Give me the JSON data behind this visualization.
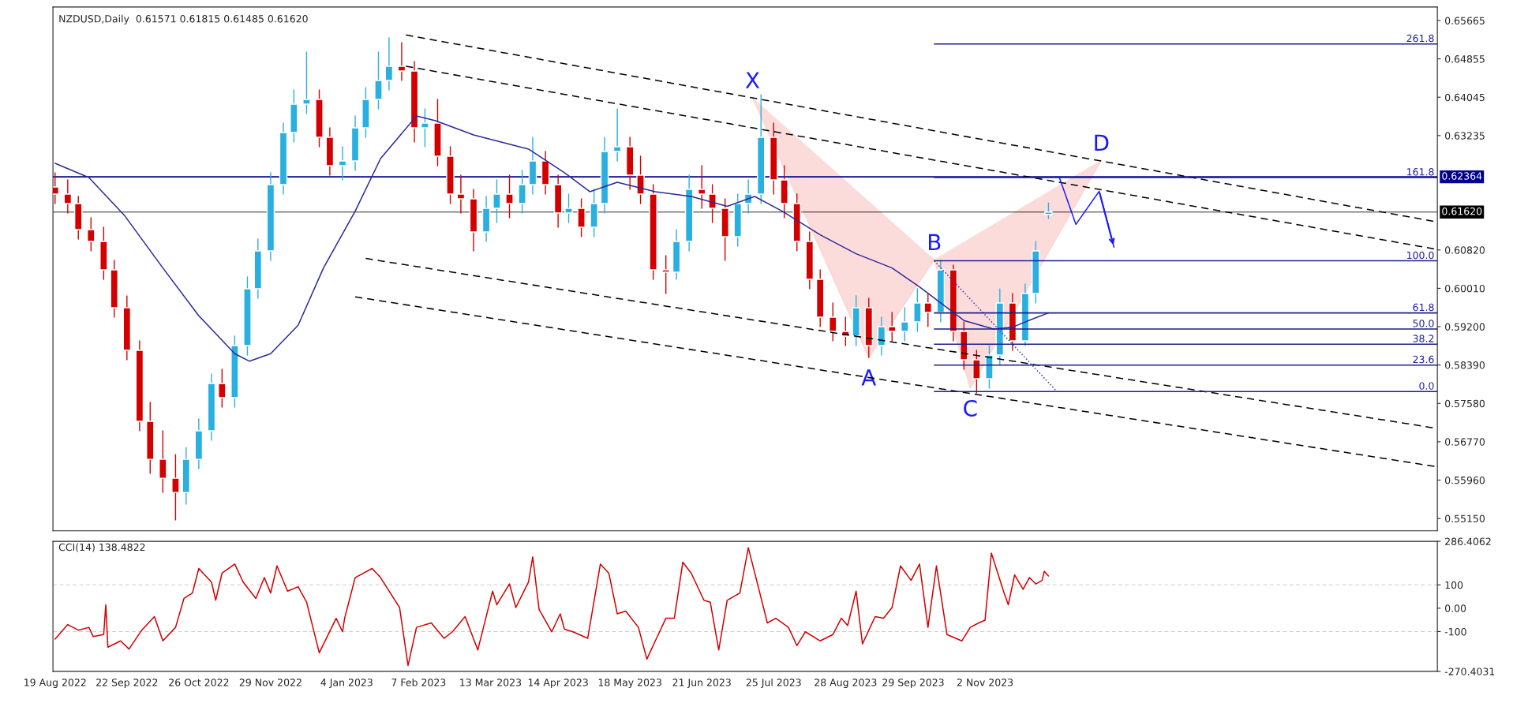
{
  "chart_data": [
    {
      "type": "candlestick",
      "title": "NZDUSD,Daily  0.61571 0.61815 0.61485 0.61620",
      "tick_labels": "y",
      "legend": false,
      "grid": false,
      "x": [
        "2022-08-19",
        "2022-08-25",
        "2022-08-30",
        "2022-09-05",
        "2022-09-11",
        "2022-09-16",
        "2022-09-22",
        "2022-09-28",
        "2022-10-03",
        "2022-10-09",
        "2022-10-15",
        "2022-10-20",
        "2022-10-26",
        "2022-11-01",
        "2022-11-06",
        "2022-11-12",
        "2022-11-18",
        "2022-11-23",
        "2022-11-29",
        "2022-12-05",
        "2022-12-10",
        "2022-12-16",
        "2022-12-22",
        "2022-12-27",
        "2023-01-02",
        "2023-01-08",
        "2023-01-13",
        "2023-01-19",
        "2023-01-24",
        "2023-01-30",
        "2023-02-05",
        "2023-02-10",
        "2023-02-16",
        "2023-02-22",
        "2023-02-27",
        "2023-03-05",
        "2023-03-11",
        "2023-03-16",
        "2023-03-22",
        "2023-03-28",
        "2023-04-02",
        "2023-04-08",
        "2023-04-14",
        "2023-04-19",
        "2023-04-25",
        "2023-05-01",
        "2023-05-06",
        "2023-05-12",
        "2023-05-18",
        "2023-05-23",
        "2023-05-29",
        "2023-06-04",
        "2023-06-09",
        "2023-06-15",
        "2023-06-21",
        "2023-06-26",
        "2023-07-02",
        "2023-07-08",
        "2023-07-13",
        "2023-07-19",
        "2023-07-25",
        "2023-07-30",
        "2023-08-05",
        "2023-08-11",
        "2023-08-16",
        "2023-08-22",
        "2023-08-28",
        "2023-09-02",
        "2023-09-08",
        "2023-09-14",
        "2023-09-19",
        "2023-09-25",
        "2023-10-01",
        "2023-10-06",
        "2023-10-12",
        "2023-10-18",
        "2023-10-23",
        "2023-10-29",
        "2023-11-04",
        "2023-11-09",
        "2023-11-15",
        "2023-11-21",
        "2023-11-26",
        "2023-12-02"
      ],
      "ohlc": [
        [
          0.6215,
          0.6245,
          0.618,
          0.62
        ],
        [
          0.62,
          0.623,
          0.616,
          0.618
        ],
        [
          0.618,
          0.6195,
          0.6105,
          0.6125
        ],
        [
          0.6125,
          0.615,
          0.608,
          0.61
        ],
        [
          0.61,
          0.613,
          0.602,
          0.604
        ],
        [
          0.604,
          0.606,
          0.594,
          0.596
        ],
        [
          0.596,
          0.5985,
          0.585,
          0.587
        ],
        [
          0.587,
          0.589,
          0.57,
          0.572
        ],
        [
          0.572,
          0.576,
          0.561,
          0.564
        ],
        [
          0.564,
          0.57,
          0.557,
          0.56
        ],
        [
          0.56,
          0.565,
          0.5512,
          0.557
        ],
        [
          0.557,
          0.5665,
          0.5545,
          0.564
        ],
        [
          0.564,
          0.5725,
          0.562,
          0.57
        ],
        [
          0.57,
          0.582,
          0.568,
          0.58
        ],
        [
          0.58,
          0.583,
          0.575,
          0.577
        ],
        [
          0.577,
          0.59,
          0.575,
          0.588
        ],
        [
          0.588,
          0.6025,
          0.586,
          0.6
        ],
        [
          0.6,
          0.6105,
          0.598,
          0.608
        ],
        [
          0.608,
          0.6245,
          0.606,
          0.622
        ],
        [
          0.622,
          0.635,
          0.62,
          0.633
        ],
        [
          0.633,
          0.642,
          0.631,
          0.639
        ],
        [
          0.639,
          0.65,
          0.637,
          0.64
        ],
        [
          0.64,
          0.642,
          0.63,
          0.632
        ],
        [
          0.632,
          0.634,
          0.624,
          0.626
        ],
        [
          0.626,
          0.63,
          0.623,
          0.627
        ],
        [
          0.627,
          0.6365,
          0.625,
          0.634
        ],
        [
          0.634,
          0.6425,
          0.632,
          0.64
        ],
        [
          0.64,
          0.65,
          0.638,
          0.644
        ],
        [
          0.644,
          0.653,
          0.642,
          0.647
        ],
        [
          0.647,
          0.652,
          0.644,
          0.646
        ],
        [
          0.646,
          0.648,
          0.631,
          0.634
        ],
        [
          0.634,
          0.638,
          0.63,
          0.635
        ],
        [
          0.635,
          0.64,
          0.626,
          0.628
        ],
        [
          0.628,
          0.63,
          0.618,
          0.62
        ],
        [
          0.62,
          0.624,
          0.616,
          0.619
        ],
        [
          0.619,
          0.621,
          0.608,
          0.612
        ],
        [
          0.612,
          0.6195,
          0.61,
          0.617
        ],
        [
          0.617,
          0.623,
          0.614,
          0.62
        ],
        [
          0.62,
          0.624,
          0.615,
          0.618
        ],
        [
          0.618,
          0.625,
          0.616,
          0.622
        ],
        [
          0.622,
          0.632,
          0.62,
          0.627
        ],
        [
          0.627,
          0.629,
          0.62,
          0.622
        ],
        [
          0.622,
          0.624,
          0.613,
          0.616
        ],
        [
          0.616,
          0.62,
          0.614,
          0.617
        ],
        [
          0.617,
          0.619,
          0.611,
          0.613
        ],
        [
          0.613,
          0.621,
          0.611,
          0.618
        ],
        [
          0.618,
          0.632,
          0.616,
          0.629
        ],
        [
          0.629,
          0.638,
          0.627,
          0.63
        ],
        [
          0.63,
          0.632,
          0.621,
          0.624
        ],
        [
          0.624,
          0.628,
          0.618,
          0.62
        ],
        [
          0.62,
          0.622,
          0.602,
          0.604
        ],
        [
          0.604,
          0.607,
          0.599,
          0.6035
        ],
        [
          0.6035,
          0.6125,
          0.602,
          0.61
        ],
        [
          0.61,
          0.624,
          0.608,
          0.621
        ],
        [
          0.621,
          0.626,
          0.617,
          0.62
        ],
        [
          0.62,
          0.622,
          0.614,
          0.617
        ],
        [
          0.617,
          0.619,
          0.606,
          0.611
        ],
        [
          0.611,
          0.62,
          0.609,
          0.618
        ],
        [
          0.618,
          0.623,
          0.616,
          0.62
        ],
        [
          0.62,
          0.641,
          0.618,
          0.632
        ],
        [
          0.632,
          0.635,
          0.62,
          0.623
        ],
        [
          0.623,
          0.626,
          0.615,
          0.618
        ],
        [
          0.618,
          0.62,
          0.608,
          0.61
        ],
        [
          0.61,
          0.612,
          0.6,
          0.602
        ],
        [
          0.602,
          0.604,
          0.592,
          0.594
        ],
        [
          0.594,
          0.597,
          0.589,
          0.591
        ],
        [
          0.591,
          0.594,
          0.588,
          0.59
        ],
        [
          0.59,
          0.5985,
          0.588,
          0.596
        ],
        [
          0.596,
          0.598,
          0.5855,
          0.588
        ],
        [
          0.588,
          0.594,
          0.586,
          0.592
        ],
        [
          0.592,
          0.595,
          0.589,
          0.591
        ],
        [
          0.591,
          0.596,
          0.589,
          0.593
        ],
        [
          0.593,
          0.6,
          0.591,
          0.597
        ],
        [
          0.597,
          0.599,
          0.592,
          0.595
        ],
        [
          0.595,
          0.606,
          0.593,
          0.604
        ],
        [
          0.604,
          0.605,
          0.589,
          0.591
        ],
        [
          0.591,
          0.593,
          0.583,
          0.585
        ],
        [
          0.585,
          0.587,
          0.578,
          0.581
        ],
        [
          0.581,
          0.588,
          0.579,
          0.586
        ],
        [
          0.586,
          0.6,
          0.584,
          0.597
        ],
        [
          0.597,
          0.599,
          0.587,
          0.589
        ],
        [
          0.589,
          0.601,
          0.588,
          0.599
        ],
        [
          0.599,
          0.61,
          0.597,
          0.608
        ],
        [
          0.61571,
          0.61815,
          0.61485,
          0.6162
        ]
      ],
      "colors": [
        "#d40000",
        "#d40000",
        "#d40000",
        "#d40000",
        "#d40000",
        "#d40000",
        "#d40000",
        "#d40000",
        "#d40000",
        "#d40000",
        "#d40000",
        "#2ab0e0",
        "#2ab0e0",
        "#2ab0e0",
        "#d40000",
        "#2ab0e0",
        "#2ab0e0",
        "#2ab0e0",
        "#2ab0e0",
        "#2ab0e0",
        "#2ab0e0",
        "#2ab0e0",
        "#d40000",
        "#d40000",
        "#2ab0e0",
        "#2ab0e0",
        "#2ab0e0",
        "#2ab0e0",
        "#2ab0e0",
        "#d40000",
        "#d40000",
        "#2ab0e0",
        "#d40000",
        "#d40000",
        "#d40000",
        "#d40000",
        "#2ab0e0",
        "#2ab0e0",
        "#d40000",
        "#2ab0e0",
        "#2ab0e0",
        "#d40000",
        "#d40000",
        "#2ab0e0",
        "#d40000",
        "#2ab0e0",
        "#2ab0e0",
        "#2ab0e0",
        "#d40000",
        "#d40000",
        "#d40000",
        "#d40000",
        "#2ab0e0",
        "#2ab0e0",
        "#d40000",
        "#d40000",
        "#d40000",
        "#2ab0e0",
        "#2ab0e0",
        "#2ab0e0",
        "#d40000",
        "#d40000",
        "#d40000",
        "#d40000",
        "#d40000",
        "#d40000",
        "#d40000",
        "#2ab0e0",
        "#d40000",
        "#2ab0e0",
        "#d40000",
        "#2ab0e0",
        "#2ab0e0",
        "#d40000",
        "#2ab0e0",
        "#d40000",
        "#d40000",
        "#d40000",
        "#2ab0e0",
        "#2ab0e0",
        "#d40000",
        "#2ab0e0",
        "#2ab0e0",
        "#2ab0e0"
      ],
      "series": [
        {
          "type": "area",
          "color": "#fbd6d4",
          "x": [
            "2023-07-15",
            "2023-09-08",
            "2023-10-09",
            "2023-10-26",
            "2023-12-27"
          ],
          "values": [
            0.6404,
            0.5855,
            0.6062,
            0.579,
            0.6272
          ]
        },
        {
          "type": "line",
          "color": "#2b2b9a",
          "line_style": "solid",
          "x": [
            "2022-08-19",
            "2022-09-04",
            "2022-09-21",
            "2022-10-09",
            "2022-10-26",
            "2022-11-12",
            "2022-11-19",
            "2022-11-29",
            "2022-12-12",
            "2022-12-24",
            "2023-01-08",
            "2023-01-20",
            "2023-02-06",
            "2023-02-15",
            "2023-03-05",
            "2023-03-31",
            "2023-04-17",
            "2023-04-29",
            "2023-05-12",
            "2023-05-30",
            "2023-06-16",
            "2023-07-03",
            "2023-07-16",
            "2023-07-29",
            "2023-08-16",
            "2023-09-02",
            "2023-09-19",
            "2023-10-02",
            "2023-10-23",
            "2023-11-06",
            "2023-11-15",
            "2023-11-25",
            "2023-12-02"
          ],
          "values": [
            0.6265,
            0.6235,
            0.6154,
            0.6044,
            0.5943,
            0.5863,
            0.5847,
            0.5863,
            0.5923,
            0.6044,
            0.6164,
            0.6275,
            0.6365,
            0.6355,
            0.6325,
            0.6295,
            0.6245,
            0.6205,
            0.6225,
            0.6205,
            0.6195,
            0.6174,
            0.6195,
            0.6164,
            0.6114,
            0.6074,
            0.6044,
            0.6004,
            0.5933,
            0.5915,
            0.5919,
            0.5937,
            0.5949
          ]
        },
        {
          "type": "line",
          "color": "#000000",
          "line_style": "dashed",
          "x": [
            "2023-02-01",
            "2024-06-03"
          ],
          "values": [
            0.6536,
            0.6141
          ]
        },
        {
          "type": "line",
          "color": "#000000",
          "line_style": "dashed",
          "x": [
            "2023-02-01",
            "2024-06-03"
          ],
          "values": [
            0.647,
            0.6083
          ]
        },
        {
          "type": "line",
          "color": "#000000",
          "line_style": "dashed",
          "x": [
            "2023-01-13",
            "2024-06-03"
          ],
          "values": [
            0.6064,
            0.5705
          ]
        },
        {
          "type": "line",
          "color": "#000000",
          "line_style": "dashed",
          "x": [
            "2023-01-08",
            "2024-06-03"
          ],
          "values": [
            0.5983,
            0.5624
          ]
        },
        {
          "type": "line",
          "color": "#3a3ab0",
          "line_style": "dotted",
          "x": [
            "2023-10-09",
            "2023-12-06"
          ],
          "values": [
            0.6059,
            0.5783
          ]
        },
        {
          "type": "line",
          "color": "#1e1e8c",
          "line_style": "solid",
          "x": [
            "2023-10-09",
            "2024-06-03"
          ],
          "values": [
            0.6517,
            0.6517
          ]
        },
        {
          "type": "line",
          "color": "#1e1e8c",
          "line_style": "solid",
          "x": [
            "2023-10-09",
            "2024-06-03"
          ],
          "values": [
            0.6235,
            0.6235
          ]
        },
        {
          "type": "line",
          "color": "#1e1e8c",
          "line_style": "solid",
          "x": [
            "2023-10-09",
            "2024-06-03"
          ],
          "values": [
            0.6059,
            0.6059
          ]
        },
        {
          "type": "line",
          "color": "#1e1e8c",
          "line_style": "solid",
          "x": [
            "2023-10-09",
            "2024-06-03"
          ],
          "values": [
            0.5949,
            0.5949
          ]
        },
        {
          "type": "line",
          "color": "#1e1e8c",
          "line_style": "solid",
          "x": [
            "2023-10-09",
            "2024-06-03"
          ],
          "values": [
            0.5915,
            0.5915
          ]
        },
        {
          "type": "line",
          "color": "#1e1e8c",
          "line_style": "solid",
          "x": [
            "2023-10-09",
            "2024-06-03"
          ],
          "values": [
            0.5883,
            0.5883
          ]
        },
        {
          "type": "line",
          "color": "#1e1e8c",
          "line_style": "solid",
          "x": [
            "2023-10-09",
            "2024-06-03"
          ],
          "values": [
            0.5839,
            0.5839
          ]
        },
        {
          "type": "line",
          "color": "#1e1e8c",
          "line_style": "solid",
          "x": [
            "2023-10-09",
            "2024-06-03"
          ],
          "values": [
            0.5783,
            0.5783
          ]
        },
        {
          "type": "line",
          "color": "#1a1aff",
          "line_style": "solid",
          "x": [
            "2023-12-07",
            "2023-12-15",
            "2023-12-26",
            "2024-01-02"
          ],
          "values": [
            0.6237,
            0.6136,
            0.6206,
            0.6088
          ]
        }
      ],
      "ref_lines": [
        {
          "axis": "y",
          "value": 0.62364,
          "label": "0.62364",
          "color": "#00008b",
          "line_style": "solid"
        },
        {
          "axis": "y",
          "value": 0.6162,
          "label": "0.61620",
          "color": "#000000",
          "line_style": "solid"
        }
      ],
      "annotations": [
        {
          "text": "261.8",
          "x": "2024-06-03",
          "y": 0.6517
        },
        {
          "text": "161.8",
          "x": "2024-06-03",
          "y": 0.6235
        },
        {
          "text": "100.0",
          "x": "2024-06-03",
          "y": 0.6059
        },
        {
          "text": "61.8",
          "x": "2024-06-03",
          "y": 0.5949
        },
        {
          "text": "50.0",
          "x": "2024-06-03",
          "y": 0.5915
        },
        {
          "text": "38.2",
          "x": "2024-06-03",
          "y": 0.5883
        },
        {
          "text": "23.6",
          "x": "2024-06-03",
          "y": 0.5839
        },
        {
          "text": "0.0",
          "x": "2024-06-03",
          "y": 0.5783
        },
        {
          "text": "X",
          "x": "2023-07-15",
          "y": 0.6404
        },
        {
          "text": "A",
          "x": "2023-09-08",
          "y": 0.5855
        },
        {
          "text": "B",
          "x": "2023-10-09",
          "y": 0.6062
        },
        {
          "text": "C",
          "x": "2023-10-26",
          "y": 0.579
        },
        {
          "text": "D",
          "x": "2023-12-27",
          "y": 0.6272
        }
      ],
      "xlim": [
        "2022-08-18",
        "2024-06-03"
      ],
      "xticks": [
        "2022-08-19",
        "2022-09-22",
        "2022-10-26",
        "2022-11-29",
        "2023-01-04",
        "2023-02-07",
        "2023-03-13",
        "2023-04-14",
        "2023-05-18",
        "2023-06-21",
        "2023-07-25",
        "2023-08-28",
        "2023-09-29",
        "2023-11-02"
      ],
      "ylim": [
        0.5489,
        0.6595
      ],
      "yticks": [
        {
          "value": 0.65665,
          "label": "0.65665"
        },
        {
          "value": 0.64855,
          "label": "0.64855"
        },
        {
          "value": 0.64045,
          "label": "0.64045"
        },
        {
          "value": 0.63235,
          "label": "0.63235"
        },
        {
          "value": 0.6082,
          "label": "0.60820"
        },
        {
          "value": 0.6001,
          "label": "0.60010"
        },
        {
          "value": 0.592,
          "label": "0.59200"
        },
        {
          "value": 0.5839,
          "label": "0.58390"
        },
        {
          "value": 0.5758,
          "label": "0.57580"
        },
        {
          "value": 0.5677,
          "label": "0.56770"
        },
        {
          "value": 0.5596,
          "label": "0.55960"
        },
        {
          "value": 0.5515,
          "label": "0.55150"
        }
      ]
    },
    {
      "type": "line",
      "title": "CCI(14) 138.4822",
      "legend": false,
      "grid": false,
      "color": "#d40000",
      "x": [
        "2022-08-19",
        "2022-08-25",
        "2022-08-30",
        "2022-09-04",
        "2022-09-06",
        "2022-09-11",
        "2022-09-12",
        "2022-09-13",
        "2022-09-19",
        "2022-09-23",
        "2022-09-29",
        "2022-10-05",
        "2022-10-09",
        "2022-10-15",
        "2022-10-19",
        "2022-10-23",
        "2022-10-26",
        "2022-11-01",
        "2022-11-03",
        "2022-11-06",
        "2022-11-12",
        "2022-11-16",
        "2022-11-22",
        "2022-11-26",
        "2022-11-29",
        "2022-12-02",
        "2022-12-07",
        "2022-12-12",
        "2022-12-16",
        "2022-12-22",
        "2022-12-30",
        "2023-01-02",
        "2023-01-03",
        "2023-01-08",
        "2023-01-16",
        "2023-01-20",
        "2023-01-29",
        "2023-02-02",
        "2023-02-06",
        "2023-02-13",
        "2023-02-19",
        "2023-02-23",
        "2023-03-01",
        "2023-03-07",
        "2023-03-14",
        "2023-03-16",
        "2023-03-22",
        "2023-03-25",
        "2023-03-31",
        "2023-04-02",
        "2023-04-05",
        "2023-04-11",
        "2023-04-15",
        "2023-04-17",
        "2023-04-21",
        "2023-04-28",
        "2023-05-04",
        "2023-05-08",
        "2023-05-12",
        "2023-05-16",
        "2023-05-22",
        "2023-05-26",
        "2023-05-30",
        "2023-06-04",
        "2023-06-08",
        "2023-06-12",
        "2023-06-16",
        "2023-06-22",
        "2023-06-25",
        "2023-06-29",
        "2023-07-03",
        "2023-07-09",
        "2023-07-13",
        "2023-07-18",
        "2023-07-22",
        "2023-07-26",
        "2023-08-01",
        "2023-08-05",
        "2023-08-09",
        "2023-08-16",
        "2023-08-22",
        "2023-08-26",
        "2023-08-29",
        "2023-09-02",
        "2023-09-05",
        "2023-09-11",
        "2023-09-15",
        "2023-09-19",
        "2023-09-23",
        "2023-09-28",
        "2023-10-02",
        "2023-10-06",
        "2023-10-10",
        "2023-10-15",
        "2023-10-22",
        "2023-10-26",
        "2023-10-30",
        "2023-11-02",
        "2023-11-05",
        "2023-11-11",
        "2023-11-13",
        "2023-11-16",
        "2023-11-20",
        "2023-11-23",
        "2023-11-26",
        "2023-11-29",
        "2023-11-30",
        "2023-12-02"
      ],
      "values": [
        -132,
        -70,
        -94,
        -82,
        -121,
        -113,
        15,
        -167,
        -140,
        -175,
        -94,
        -36,
        -140,
        -82,
        42,
        65,
        170,
        112,
        34,
        150,
        189,
        112,
        42,
        131,
        65,
        181,
        73,
        92,
        26,
        -191,
        -43,
        -101,
        -43,
        131,
        170,
        131,
        3,
        -245,
        -82,
        -63,
        -129,
        -101,
        -36,
        -179,
        73,
        15,
        104,
        3,
        112,
        220,
        -5,
        -101,
        -24,
        -90,
        -101,
        -129,
        189,
        150,
        -24,
        -12,
        -82,
        -218,
        -140,
        -43,
        -43,
        197,
        150,
        34,
        26,
        -179,
        34,
        65,
        259,
        81,
        -63,
        -43,
        -82,
        -160,
        -101,
        -140,
        -113,
        -43,
        -74,
        73,
        -153,
        -36,
        -43,
        3,
        181,
        119,
        189,
        -82,
        181,
        -113,
        -140,
        -82,
        -63,
        -51,
        236,
        65,
        15,
        143,
        81,
        131,
        104,
        119,
        158,
        138
      ],
      "ref_lines": [
        {
          "axis": "y",
          "value": 100,
          "color": "#c0c0c0",
          "line_style": "dashed"
        },
        {
          "axis": "y",
          "value": -100,
          "color": "#c0c0c0",
          "line_style": "dashed"
        }
      ],
      "xlim": [
        "2022-08-18",
        "2024-06-03"
      ],
      "xticks": [
        {
          "value": "2022-08-19",
          "label": "19 Aug 2022"
        },
        {
          "value": "2022-09-22",
          "label": "22 Sep 2022"
        },
        {
          "value": "2022-10-26",
          "label": "26 Oct 2022"
        },
        {
          "value": "2022-11-29",
          "label": "29 Nov 2022"
        },
        {
          "value": "2023-01-04",
          "label": "4 Jan 2023"
        },
        {
          "value": "2023-02-07",
          "label": "7 Feb 2023"
        },
        {
          "value": "2023-03-13",
          "label": "13 Mar 2023"
        },
        {
          "value": "2023-04-14",
          "label": "14 Apr 2023"
        },
        {
          "value": "2023-05-18",
          "label": "18 May 2023"
        },
        {
          "value": "2023-06-21",
          "label": "21 Jun 2023"
        },
        {
          "value": "2023-07-25",
          "label": "25 Jul 2023"
        },
        {
          "value": "2023-08-28",
          "label": "28 Aug 2023"
        },
        {
          "value": "2023-09-29",
          "label": "29 Sep 2023"
        },
        {
          "value": "2023-11-02",
          "label": "2 Nov 2023"
        }
      ],
      "ylim": [
        -270.4031,
        286.4062
      ],
      "yticks": [
        {
          "value": 286.4062,
          "label": "286.4062"
        },
        100,
        {
          "value": 0,
          "label": "0.00"
        },
        -100,
        {
          "value": -270.4031,
          "label": "-270.4031"
        }
      ]
    }
  ]
}
